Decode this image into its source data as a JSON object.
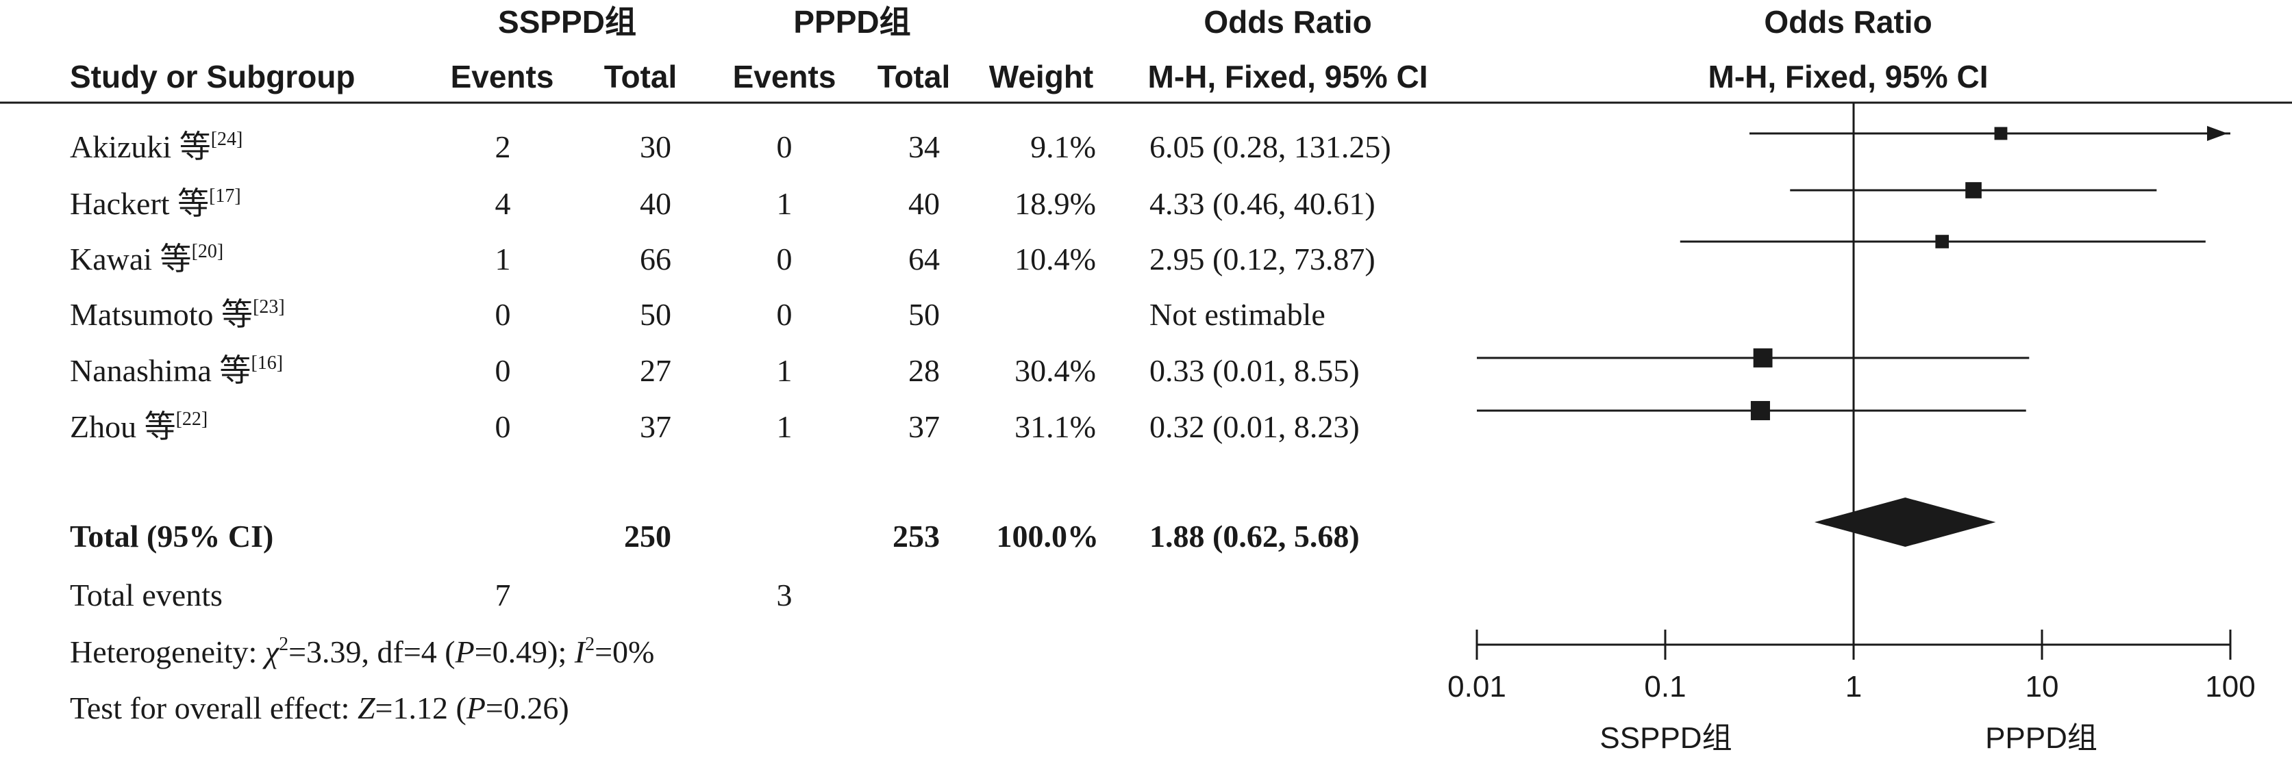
{
  "header": {
    "group1": "SSPPD组",
    "group2": "PPPD组",
    "odds_ratio_table": "Odds Ratio",
    "odds_ratio_plot": "Odds Ratio",
    "study": "Study or Subgroup",
    "events1": "Events",
    "total1": "Total",
    "events2": "Events",
    "total2": "Total",
    "weight": "Weight",
    "method_table": "M-H, Fixed, 95% CI",
    "method_plot": "M-H, Fixed, 95% CI"
  },
  "studies": [
    {
      "name": "Akizuki 等",
      "ref": "[24]",
      "e1": "2",
      "t1": "30",
      "e2": "0",
      "t2": "34",
      "weight": "9.1%",
      "ci_text": "6.05 (0.28, 131.25)"
    },
    {
      "name": "Hackert 等",
      "ref": "[17]",
      "e1": "4",
      "t1": "40",
      "e2": "1",
      "t2": "40",
      "weight": "18.9%",
      "ci_text": "4.33 (0.46, 40.61)"
    },
    {
      "name": "Kawai 等",
      "ref": "[20]",
      "e1": "1",
      "t1": "66",
      "e2": "0",
      "t2": "64",
      "weight": "10.4%",
      "ci_text": "2.95 (0.12, 73.87)"
    },
    {
      "name": "Matsumoto 等",
      "ref": "[23]",
      "e1": "0",
      "t1": "50",
      "e2": "0",
      "t2": "50",
      "weight": "",
      "ci_text": "Not estimable"
    },
    {
      "name": "Nanashima 等",
      "ref": "[16]",
      "e1": "0",
      "t1": "27",
      "e2": "1",
      "t2": "28",
      "weight": "30.4%",
      "ci_text": "0.33 (0.01, 8.55)"
    },
    {
      "name": "Zhou 等",
      "ref": "[22]",
      "e1": "0",
      "t1": "37",
      "e2": "1",
      "t2": "37",
      "weight": "31.1%",
      "ci_text": "0.32 (0.01, 8.23)"
    }
  ],
  "total": {
    "label": "Total (95% CI)",
    "t1": "250",
    "t2": "253",
    "weight": "100.0%",
    "ci_text": "1.88 (0.62, 5.68)"
  },
  "total_events": {
    "label": "Total events",
    "e1": "7",
    "e2": "3"
  },
  "heterogeneity": {
    "label": "Heterogeneity: ",
    "chi": "χ",
    "chi_sup": "2",
    "chi_val": "=3.39, df=4 (",
    "p": "P",
    "p_val": "=0.49); ",
    "i": "I",
    "i_sup": "2",
    "i_val": "=0%"
  },
  "overall": {
    "label": "Test for overall effect: ",
    "z": "Z",
    "z_val": "=1.12 (",
    "p": "P",
    "p_val": "=0.26)"
  },
  "axis": {
    "ticks": [
      "0.01",
      "0.1",
      "1",
      "10",
      "100"
    ],
    "favours_left": "SSPPD组",
    "favours_right": "PPPD组"
  },
  "chart_data": {
    "type": "forest",
    "scale": "log",
    "xlim": [
      0.01,
      100
    ],
    "reference_line": 1,
    "xticks": [
      0.01,
      0.1,
      1,
      10,
      100
    ],
    "studies": [
      {
        "or": 6.05,
        "lo": 0.28,
        "hi": 131.25,
        "weight": 9.1
      },
      {
        "or": 4.33,
        "lo": 0.46,
        "hi": 40.61,
        "weight": 18.9
      },
      {
        "or": 2.95,
        "lo": 0.12,
        "hi": 73.87,
        "weight": 10.4
      },
      {
        "or": null,
        "lo": null,
        "hi": null,
        "weight": null
      },
      {
        "or": 0.33,
        "lo": 0.01,
        "hi": 8.55,
        "weight": 30.4
      },
      {
        "or": 0.32,
        "lo": 0.01,
        "hi": 8.23,
        "weight": 31.1
      }
    ],
    "total": {
      "or": 1.88,
      "lo": 0.62,
      "hi": 5.68
    }
  }
}
